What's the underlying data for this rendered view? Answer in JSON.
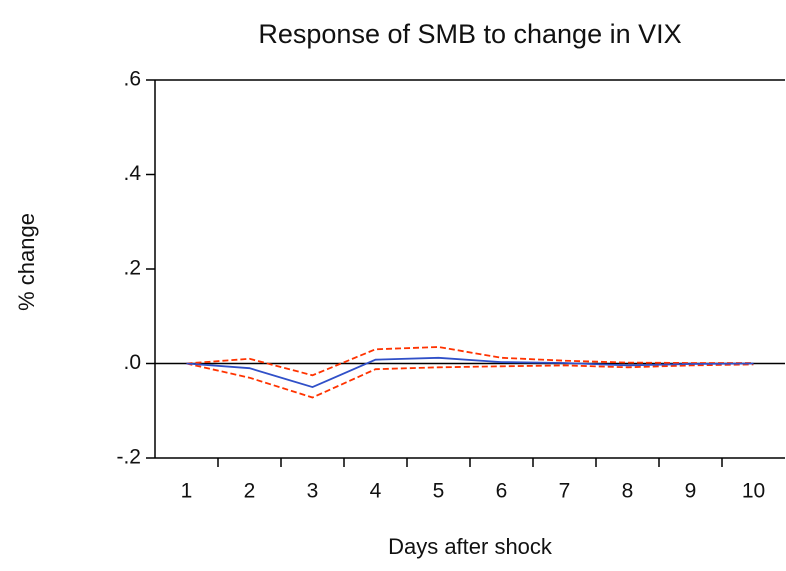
{
  "chart_data": {
    "type": "line",
    "title": "Response of SMB to change in VIX",
    "ylabel": "% change",
    "xlabel": "Days after shock",
    "categories": [
      "1",
      "2",
      "3",
      "4",
      "5",
      "6",
      "7",
      "8",
      "9",
      "10"
    ],
    "series": [
      {
        "color": "#ff3300",
        "dash": true,
        "values": [
          0,
          0.01,
          -0.025,
          0.03,
          0.035,
          0.012,
          0.006,
          0.002,
          0.001,
          0.001
        ]
      },
      {
        "color": "#ff3300",
        "dash": true,
        "values": [
          0,
          -0.03,
          -0.072,
          -0.012,
          -0.008,
          -0.006,
          -0.004,
          -0.008,
          -0.004,
          -0.002
        ]
      },
      {
        "color": "#3050c8",
        "dash": false,
        "values": [
          0,
          -0.01,
          -0.05,
          0.008,
          0.012,
          0.003,
          0.001,
          -0.004,
          -0.001,
          0
        ]
      }
    ],
    "ylim": [
      -0.2,
      0.6
    ],
    "yticks": [
      {
        "value": -0.2,
        "label": "-.2"
      },
      {
        "value": 0,
        "label": ".0"
      },
      {
        "value": 0.2,
        "label": ".2"
      },
      {
        "value": 0.4,
        "label": ".4"
      },
      {
        "value": 0.6,
        "label": ".6"
      }
    ],
    "zero_line": true
  }
}
